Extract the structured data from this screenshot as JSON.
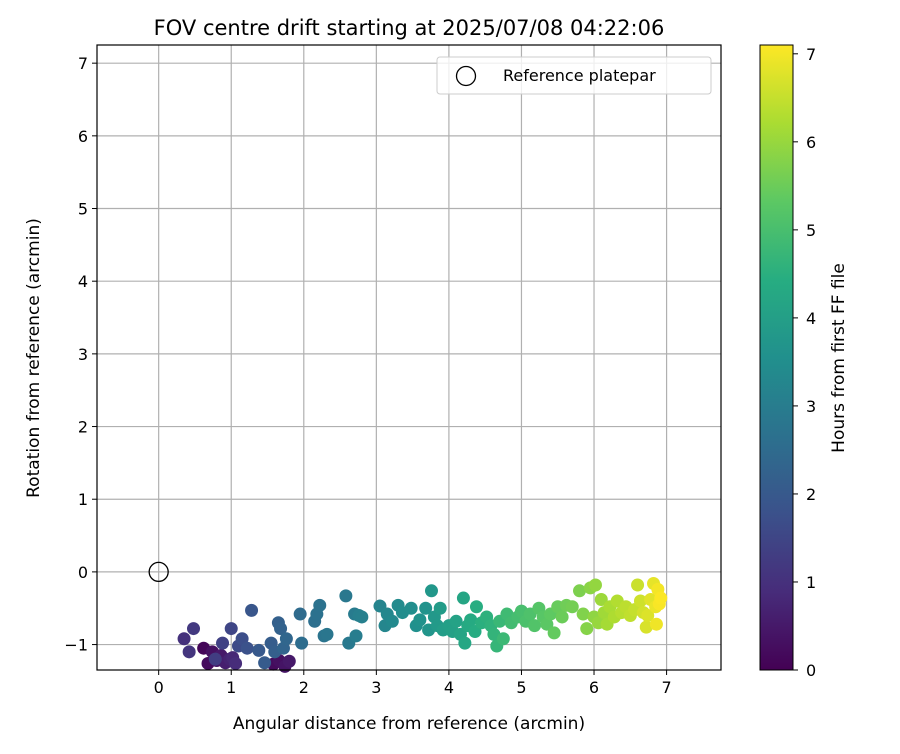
{
  "chart_data": {
    "type": "scatter",
    "title": "FOV centre drift starting at 2025/07/08 04:22:06",
    "xlabel": "Angular distance from reference (arcmin)",
    "ylabel": "Rotation from reference (arcmin)",
    "xlim": [
      -0.85,
      7.75
    ],
    "ylim": [
      -1.35,
      7.25
    ],
    "xticks": [
      "0",
      "1",
      "2",
      "3",
      "4",
      "5",
      "6",
      "7"
    ],
    "yticks": [
      "−1",
      "0",
      "1",
      "2",
      "3",
      "4",
      "5",
      "6",
      "7"
    ],
    "grid": true,
    "legend": {
      "position": "top-right",
      "entries": [
        "Reference platepar"
      ]
    },
    "reference_point": {
      "x": 0,
      "y": 0
    },
    "colorbar": {
      "label": "Hours from first FF file",
      "colormap": "viridis",
      "range": [
        0,
        7.1
      ],
      "ticks": [
        "0",
        "1",
        "2",
        "3",
        "4",
        "5",
        "6",
        "7"
      ]
    },
    "series": [
      {
        "points": [
          [
            0.62,
            -1.05,
            0.1
          ],
          [
            0.68,
            -1.26,
            0.2
          ],
          [
            0.74,
            -1.1,
            0.3
          ],
          [
            0.8,
            -1.22,
            0.4
          ],
          [
            0.86,
            -1.15,
            0.5
          ],
          [
            0.92,
            -1.25,
            0.6
          ],
          [
            0.98,
            -1.2,
            0.7
          ],
          [
            1.02,
            -1.18,
            0.8
          ],
          [
            1.06,
            -1.26,
            0.9
          ],
          [
            1.58,
            -1.27,
            0.2
          ],
          [
            1.66,
            -1.22,
            0.3
          ],
          [
            1.74,
            -1.3,
            0.4
          ],
          [
            1.8,
            -1.23,
            0.5
          ],
          [
            0.35,
            -0.92,
            1.0
          ],
          [
            0.42,
            -1.1,
            1.1
          ],
          [
            0.48,
            -0.78,
            1.2
          ],
          [
            0.78,
            -1.2,
            1.3
          ],
          [
            0.88,
            -0.98,
            1.4
          ],
          [
            1.0,
            -0.78,
            1.5
          ],
          [
            1.1,
            -1.02,
            1.6
          ],
          [
            1.15,
            -0.92,
            1.7
          ],
          [
            1.22,
            -1.05,
            1.8
          ],
          [
            1.28,
            -0.53,
            1.9
          ],
          [
            1.38,
            -1.08,
            2.0
          ],
          [
            1.46,
            -1.25,
            2.05
          ],
          [
            1.55,
            -0.98,
            2.1
          ],
          [
            1.6,
            -1.1,
            2.15
          ],
          [
            1.65,
            -0.7,
            2.2
          ],
          [
            1.68,
            -0.78,
            2.25
          ],
          [
            1.72,
            -1.05,
            2.3
          ],
          [
            1.76,
            -0.92,
            2.35
          ],
          [
            1.95,
            -0.58,
            2.5
          ],
          [
            1.97,
            -0.98,
            2.55
          ],
          [
            2.15,
            -0.68,
            2.6
          ],
          [
            2.18,
            -0.58,
            2.65
          ],
          [
            2.22,
            -0.46,
            2.7
          ],
          [
            2.28,
            -0.88,
            2.75
          ],
          [
            2.32,
            -0.86,
            2.8
          ],
          [
            2.58,
            -0.33,
            2.85
          ],
          [
            2.62,
            -0.98,
            2.9
          ],
          [
            2.7,
            -0.58,
            2.95
          ],
          [
            2.72,
            -0.88,
            3.0
          ],
          [
            2.76,
            -0.6,
            3.05
          ],
          [
            2.8,
            -0.62,
            3.1
          ],
          [
            3.05,
            -0.47,
            3.2
          ],
          [
            3.12,
            -0.74,
            3.25
          ],
          [
            3.15,
            -0.58,
            3.3
          ],
          [
            3.22,
            -0.68,
            3.35
          ],
          [
            3.3,
            -0.46,
            3.4
          ],
          [
            3.36,
            -0.56,
            3.45
          ],
          [
            3.48,
            -0.5,
            3.5
          ],
          [
            3.55,
            -0.74,
            3.55
          ],
          [
            3.6,
            -0.66,
            3.6
          ],
          [
            3.68,
            -0.5,
            3.65
          ],
          [
            3.72,
            -0.8,
            3.7
          ],
          [
            3.76,
            -0.26,
            3.75
          ],
          [
            3.8,
            -0.62,
            3.8
          ],
          [
            3.84,
            -0.74,
            3.85
          ],
          [
            3.88,
            -0.5,
            3.9
          ],
          [
            3.92,
            -0.8,
            3.95
          ],
          [
            4.0,
            -0.74,
            4.0
          ],
          [
            4.05,
            -0.82,
            4.05
          ],
          [
            4.1,
            -0.68,
            4.1
          ],
          [
            4.16,
            -0.86,
            4.15
          ],
          [
            4.2,
            -0.36,
            4.2
          ],
          [
            4.22,
            -0.98,
            4.25
          ],
          [
            4.26,
            -0.74,
            4.3
          ],
          [
            4.3,
            -0.66,
            4.35
          ],
          [
            4.36,
            -0.82,
            4.4
          ],
          [
            4.38,
            -0.48,
            4.45
          ],
          [
            4.45,
            -0.7,
            4.5
          ],
          [
            4.52,
            -0.62,
            4.55
          ],
          [
            4.58,
            -0.74,
            4.6
          ],
          [
            4.62,
            -0.86,
            4.65
          ],
          [
            4.66,
            -1.02,
            4.7
          ],
          [
            4.7,
            -0.68,
            4.75
          ],
          [
            4.75,
            -0.92,
            4.8
          ],
          [
            4.8,
            -0.58,
            4.85
          ],
          [
            4.86,
            -0.7,
            4.9
          ],
          [
            4.95,
            -0.62,
            4.95
          ],
          [
            5.0,
            -0.54,
            5.0
          ],
          [
            5.06,
            -0.68,
            5.05
          ],
          [
            5.12,
            -0.58,
            5.1
          ],
          [
            5.18,
            -0.74,
            5.15
          ],
          [
            5.24,
            -0.5,
            5.2
          ],
          [
            5.3,
            -0.62,
            5.25
          ],
          [
            5.35,
            -0.72,
            5.3
          ],
          [
            5.4,
            -0.58,
            5.35
          ],
          [
            5.45,
            -0.84,
            5.4
          ],
          [
            5.5,
            -0.48,
            5.45
          ],
          [
            5.56,
            -0.62,
            5.5
          ],
          [
            5.62,
            -0.46,
            5.55
          ],
          [
            5.7,
            -0.48,
            5.6
          ],
          [
            5.8,
            -0.26,
            5.7
          ],
          [
            5.85,
            -0.58,
            5.75
          ],
          [
            5.9,
            -0.78,
            5.8
          ],
          [
            5.95,
            -0.22,
            5.85
          ],
          [
            6.0,
            -0.62,
            5.9
          ],
          [
            6.02,
            -0.18,
            5.95
          ],
          [
            6.06,
            -0.7,
            6.0
          ],
          [
            6.1,
            -0.38,
            6.05
          ],
          [
            6.14,
            -0.56,
            6.1
          ],
          [
            6.18,
            -0.72,
            6.15
          ],
          [
            6.22,
            -0.48,
            6.2
          ],
          [
            6.28,
            -0.62,
            6.25
          ],
          [
            6.32,
            -0.4,
            6.3
          ],
          [
            6.38,
            -0.56,
            6.35
          ],
          [
            6.44,
            -0.48,
            6.4
          ],
          [
            6.5,
            -0.6,
            6.45
          ],
          [
            6.56,
            -0.52,
            6.5
          ],
          [
            6.6,
            -0.18,
            6.55
          ],
          [
            6.64,
            -0.4,
            6.6
          ],
          [
            6.68,
            -0.56,
            6.65
          ],
          [
            6.72,
            -0.76,
            6.7
          ],
          [
            6.74,
            -0.6,
            6.75
          ],
          [
            6.78,
            -0.38,
            6.8
          ],
          [
            6.82,
            -0.16,
            6.85
          ],
          [
            6.85,
            -0.48,
            6.9
          ],
          [
            6.86,
            -0.72,
            6.95
          ],
          [
            6.88,
            -0.24,
            7.0
          ],
          [
            6.9,
            -0.44,
            7.05
          ],
          [
            6.92,
            -0.36,
            7.08
          ]
        ]
      }
    ]
  }
}
